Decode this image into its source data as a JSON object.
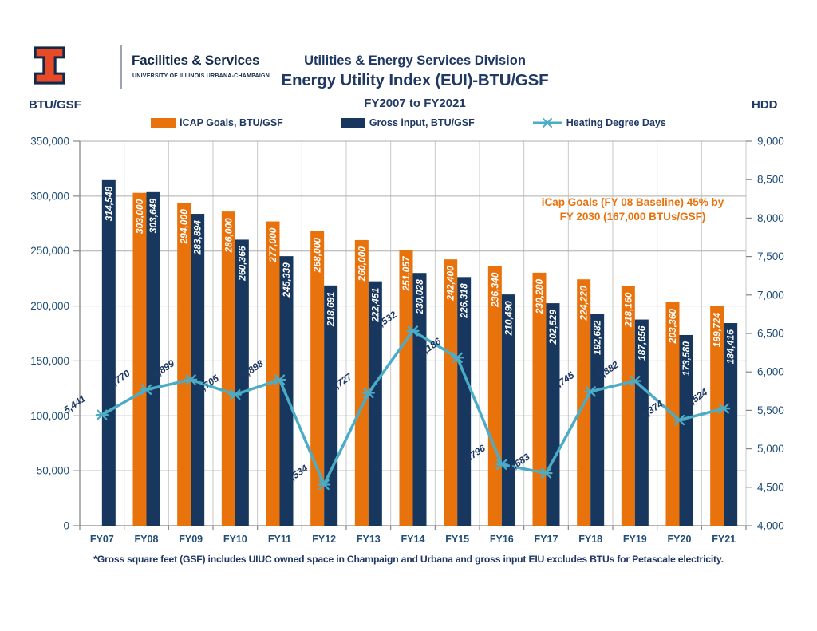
{
  "header": {
    "logo": {
      "wordmark": "Facilities & Services",
      "subtext": "UNIVERSITY OF ILLINOIS URBANA-CHAMPAIGN"
    },
    "title_line1": "Utilities & Energy Services Division",
    "title_line2": "Energy Utility Index (EUI)-BTU/GSF",
    "title_line3": "FY2007 to FY2021",
    "left_axis_title": "BTU/GSF",
    "right_axis_title": "HDD"
  },
  "legend": [
    {
      "label": "iCAP Goals, BTU/GSF",
      "color": "#e8720c",
      "type": "bar"
    },
    {
      "label": "Gross input, BTU/GSF",
      "color": "#17375e",
      "type": "bar"
    },
    {
      "label": "Heating Degree Days",
      "color": "#4bacc6",
      "type": "line"
    }
  ],
  "annotation": {
    "line1": "iCap Goals (FY 08 Baseline) 45% by",
    "line2": "FY 2030 (167,000 BTUs/GSF)",
    "color": "#e8720c"
  },
  "footnote": "*Gross square feet (GSF) includes UIUC owned space in Champaign and Urbana and gross input EIU excludes BTUs for Petascale electricity.",
  "chart_data": {
    "type": "bar+line",
    "title": "Energy Utility Index (EUI)-BTU/GSF",
    "subtitle": "FY2007 to FY2021",
    "ylabel_left": "BTU/GSF",
    "ylabel_right": "HDD",
    "legend_position": "top",
    "grid": true,
    "categories": [
      "FY07",
      "FY08",
      "FY09",
      "FY10",
      "FY11",
      "FY12",
      "FY13",
      "FY14",
      "FY15",
      "FY16",
      "FY17",
      "FY18",
      "FY19",
      "FY20",
      "FY21"
    ],
    "series": [
      {
        "name": "iCAP Goals, BTU/GSF",
        "type": "bar",
        "axis": "left",
        "color": "#e8720c",
        "values": [
          null,
          303000,
          294000,
          286000,
          277000,
          268000,
          260000,
          251057,
          242400,
          236340,
          230280,
          224220,
          218160,
          203360,
          199724
        ],
        "labels": [
          null,
          "303,000",
          "294,000",
          "286,000",
          "277,000",
          "268,000",
          "260,000",
          "251,057",
          "242,400",
          "236,340",
          "230,280",
          "224,220",
          "218,160",
          "203,360",
          "199,724"
        ]
      },
      {
        "name": "Gross input, BTU/GSF",
        "type": "bar",
        "axis": "left",
        "color": "#17375e",
        "values": [
          314548,
          303649,
          283894,
          260366,
          245339,
          218691,
          222451,
          230028,
          226318,
          210490,
          202529,
          192682,
          187656,
          173580,
          184416
        ],
        "labels": [
          "314,548",
          "303,649",
          "283,894",
          "260,366",
          "245,339",
          "218,691",
          "222,451",
          "230,028",
          "226,318",
          "210,490",
          "202,529",
          "192,682",
          "187,656",
          "173,580",
          "184,416"
        ]
      },
      {
        "name": "Heating Degree Days",
        "type": "line",
        "axis": "right",
        "color": "#4bacc6",
        "values": [
          5441,
          5770,
          5899,
          5705,
          5898,
          4534,
          5727,
          6532,
          6186,
          4796,
          4683,
          5745,
          5882,
          5374,
          5524
        ],
        "labels": [
          "5,441",
          "5,770",
          "5,899",
          "5,705",
          "5,898",
          "4,534",
          "5,727",
          "6,532",
          "6,186",
          "4,796",
          "4,683",
          "5,745",
          "5,882",
          "5,374",
          "5,524"
        ]
      }
    ],
    "left_axis": {
      "min": 0,
      "max": 350000,
      "step": 50000,
      "ticks": [
        "0",
        "50,000",
        "100,000",
        "150,000",
        "200,000",
        "250,000",
        "300,000",
        "350,000"
      ]
    },
    "right_axis": {
      "min": 4000,
      "max": 9000,
      "step": 500,
      "ticks": [
        "4,000",
        "4,500",
        "5,000",
        "5,500",
        "6,000",
        "6,500",
        "7,000",
        "7,500",
        "8,000",
        "8,500",
        "9,000"
      ]
    }
  }
}
